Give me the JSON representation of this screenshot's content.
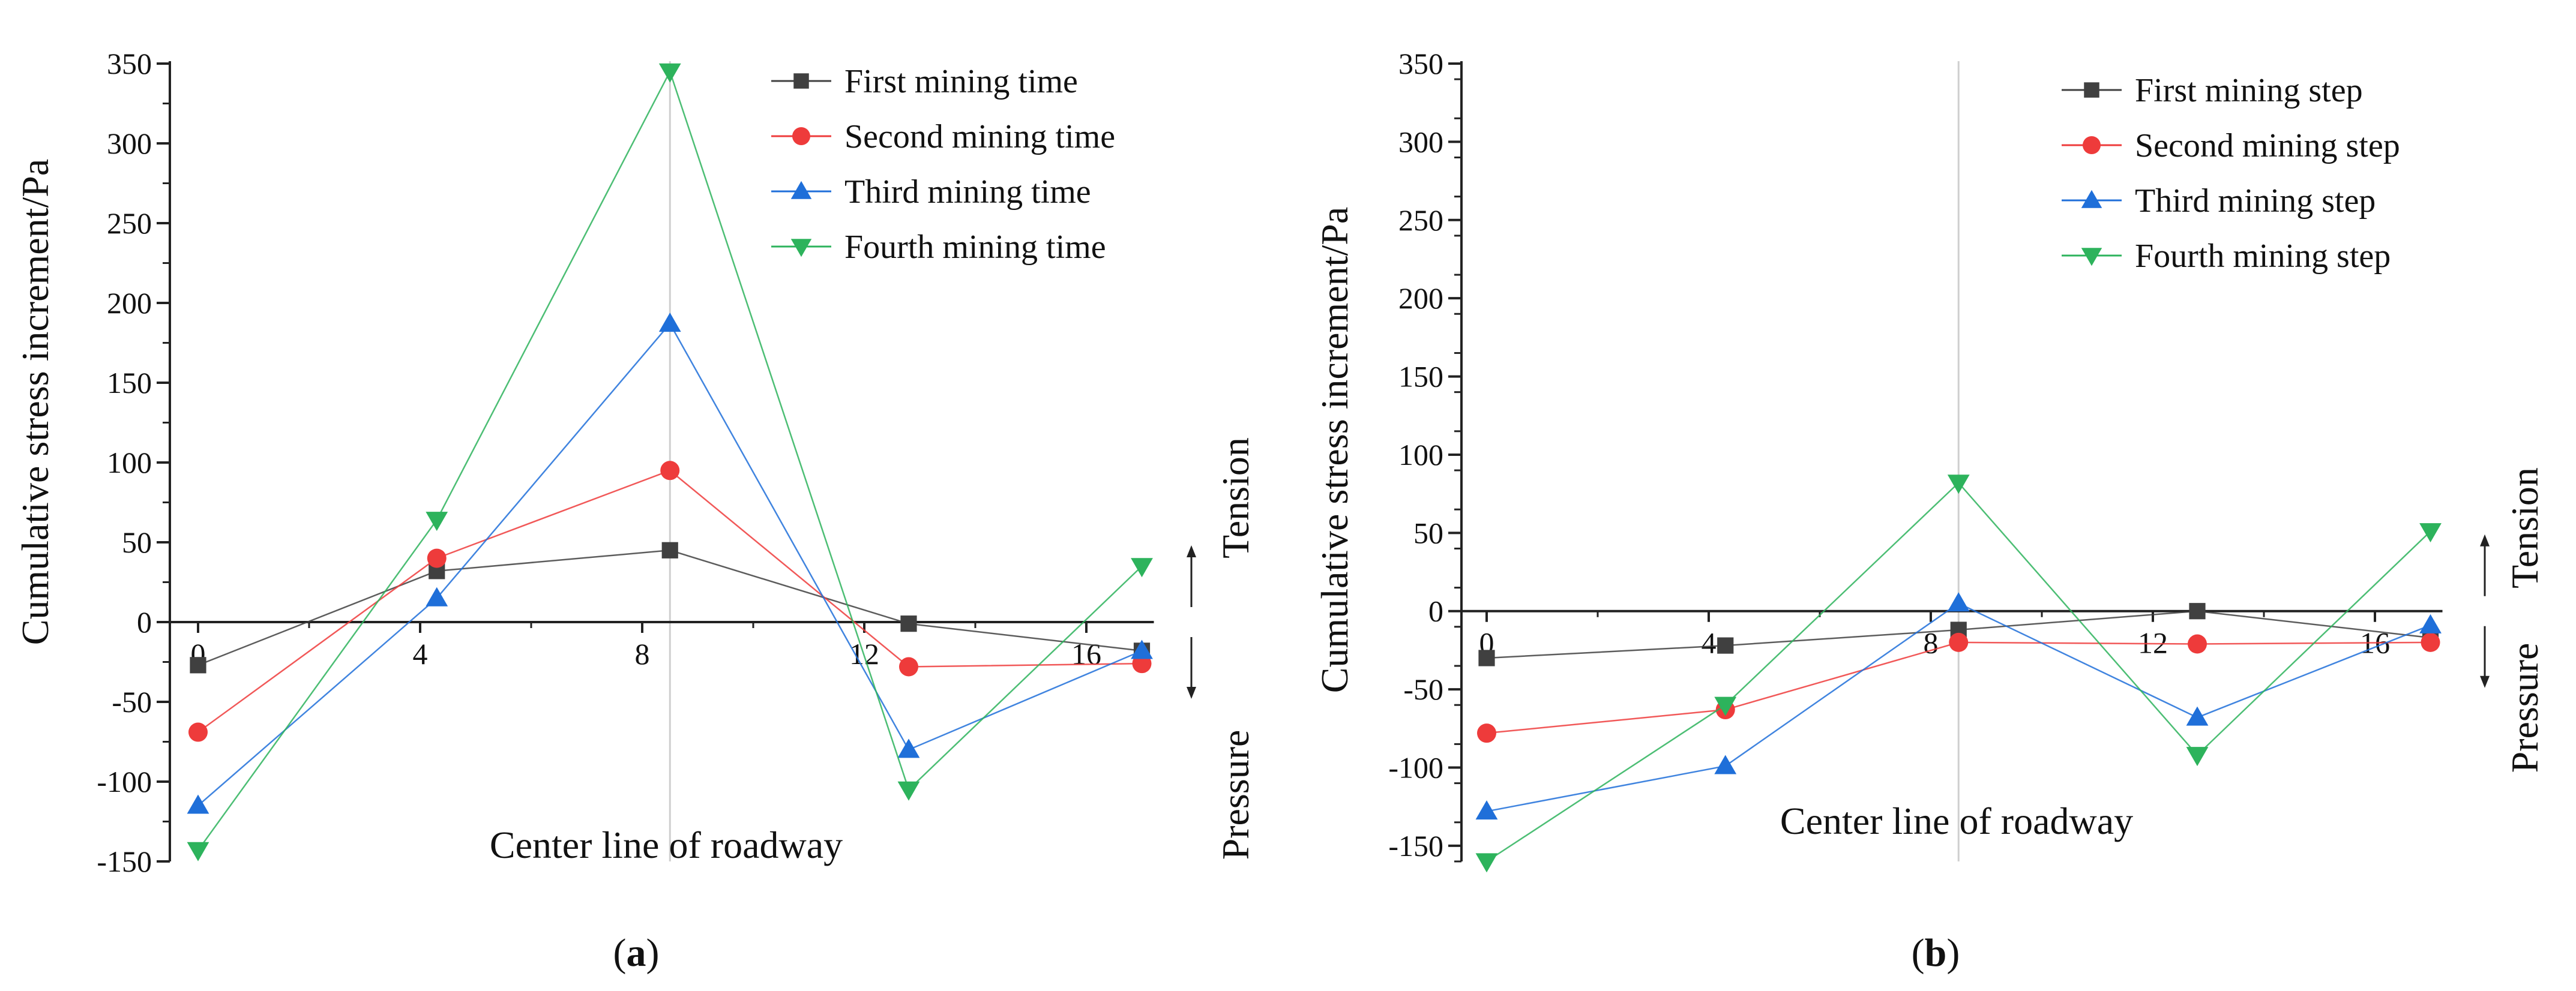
{
  "chart_data": [
    {
      "type": "line",
      "panel_label": "a",
      "ylabel": "Cumulative stress increment/Pa",
      "xlabel": "Center line of roadway",
      "side_labels": {
        "up": "Tension",
        "down": "Pressure"
      },
      "ylim": [
        -150,
        350
      ],
      "yticks": [
        -150,
        -100,
        -50,
        0,
        50,
        100,
        150,
        200,
        250,
        300,
        350
      ],
      "xlim": [
        0,
        17
      ],
      "xticks": [
        0,
        4,
        8,
        12,
        16
      ],
      "vline_x": 8.5,
      "legend_position": "top-right",
      "x": [
        0,
        4.3,
        8.5,
        12.8,
        17
      ],
      "series": [
        {
          "name": "First mining time",
          "marker": "square",
          "color": "#404040",
          "values": [
            -27,
            32,
            45,
            -1,
            -18
          ]
        },
        {
          "name": "Second mining time",
          "marker": "circle",
          "color": "#ee3b3b",
          "values": [
            -69,
            40,
            95,
            -28,
            -26
          ]
        },
        {
          "name": "Third mining time",
          "marker": "triangle-up",
          "color": "#1f6fd9",
          "values": [
            -115,
            15,
            187,
            -80,
            -18
          ]
        },
        {
          "name": "Fourth mining time",
          "marker": "triangle-down",
          "color": "#2db35c",
          "values": [
            -143,
            64,
            345,
            -105,
            35
          ]
        }
      ]
    },
    {
      "type": "line",
      "panel_label": "b",
      "ylabel": "Cumulative stress increment/Pa",
      "xlabel": "Center line of roadway",
      "side_labels": {
        "up": "Tension",
        "down": "Pressure"
      },
      "ylim": [
        -160,
        350
      ],
      "yticks": [
        -150,
        -100,
        -50,
        0,
        50,
        100,
        150,
        200,
        250,
        300,
        350
      ],
      "xlim": [
        0,
        17
      ],
      "xticks": [
        0,
        4,
        8,
        12,
        16
      ],
      "vline_x": 8.5,
      "legend_position": "top-right",
      "x": [
        0,
        4.3,
        8.5,
        12.8,
        17
      ],
      "series": [
        {
          "name": "First mining step",
          "marker": "square",
          "color": "#404040",
          "values": [
            -30,
            -22,
            -12,
            0,
            -17
          ]
        },
        {
          "name": "Second mining step",
          "marker": "circle",
          "color": "#ee3b3b",
          "values": [
            -78,
            -63,
            -20,
            -21,
            -20
          ]
        },
        {
          "name": "Third mining step",
          "marker": "triangle-up",
          "color": "#1f6fd9",
          "values": [
            -128,
            -99,
            5,
            -68,
            -9
          ]
        },
        {
          "name": "Fourth mining step",
          "marker": "triangle-down",
          "color": "#2db35c",
          "values": [
            -160,
            -60,
            82,
            -92,
            51
          ]
        }
      ]
    }
  ]
}
